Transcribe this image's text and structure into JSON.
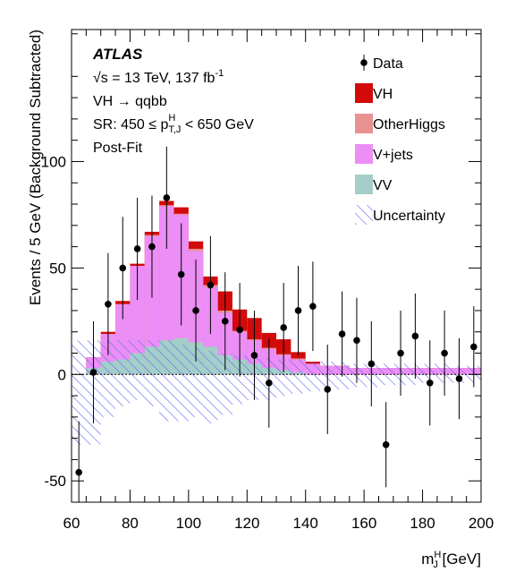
{
  "chart_data": {
    "type": "histogram",
    "experiment": "ATLAS",
    "energy_lumi": "√s = 13 TeV, 137 fb",
    "lumi_exp": "-1",
    "process": "VH → qqbb",
    "region_prefix": "SR: 450 ≤ p",
    "region_sup": "H",
    "region_sub": "T,J",
    "region_suffix": " < 650 GeV",
    "fit_label": "Post-Fit",
    "xlabel_main": "m",
    "xlabel_sup": "H",
    "xlabel_sub": "J",
    "xlabel_unit": " [GeV]",
    "ylabel": "Events / 5 GeV (Background Subtracted)",
    "xlim": [
      60,
      200
    ],
    "ylim": [
      -60,
      162
    ],
    "xticks": [
      60,
      80,
      100,
      120,
      140,
      160,
      180,
      200
    ],
    "yticks": [
      -50,
      0,
      50,
      100
    ],
    "bin_edges": [
      60,
      65,
      70,
      75,
      80,
      85,
      90,
      95,
      100,
      105,
      110,
      115,
      120,
      125,
      130,
      135,
      140,
      145,
      150,
      155,
      160,
      165,
      170,
      175,
      180,
      185,
      190,
      195,
      200
    ],
    "stack": [
      {
        "name": "VV",
        "color": "#a3cfc8",
        "values": [
          0,
          3,
          6,
          7,
          10,
          13,
          16,
          17,
          15,
          13,
          9,
          7,
          5,
          3,
          2,
          1,
          0,
          0,
          0,
          0,
          0,
          0,
          0,
          0,
          0,
          0,
          0,
          0
        ]
      },
      {
        "name": "V+jets",
        "color": "#ec8ef5",
        "values": [
          0,
          5,
          13,
          26,
          41,
          52,
          63,
          58,
          43,
          28,
          20,
          13,
          11,
          9,
          7,
          6,
          5,
          4,
          4,
          3,
          3,
          3,
          3,
          3,
          3,
          3,
          3,
          3
        ]
      },
      {
        "name": "OtherHiggs",
        "color": "#e89292",
        "values": [
          0,
          0,
          0,
          0,
          0,
          0.5,
          0.5,
          0.5,
          1,
          1,
          1,
          0.5,
          0.5,
          0.5,
          0.5,
          0.5,
          0,
          0,
          0,
          0,
          0,
          0,
          0,
          0,
          0,
          0,
          0,
          0
        ]
      },
      {
        "name": "VH",
        "color": "#d20a0a",
        "values": [
          0,
          0,
          1,
          1.5,
          1,
          1.5,
          2,
          3,
          3.5,
          4,
          9,
          10,
          10,
          7,
          7,
          3,
          1,
          0,
          0,
          0,
          0,
          0,
          0,
          0,
          0,
          0,
          0,
          0
        ]
      }
    ],
    "uncertainty": {
      "name": "Uncertainty",
      "color": "#6b6ff0",
      "up": [
        16,
        16,
        16,
        16,
        16,
        16,
        16,
        14,
        13,
        11,
        10,
        9,
        8,
        8,
        7,
        7,
        6,
        6,
        6,
        5,
        5,
        5,
        5,
        5,
        5,
        5,
        4,
        4
      ],
      "down": [
        -33,
        -33,
        -20,
        -15,
        -12,
        -15,
        -22,
        -22,
        -20,
        -23,
        -19,
        -14,
        -12,
        -12,
        -10,
        -9,
        -8,
        -7,
        -7,
        -6,
        -6,
        -5,
        -5,
        -5,
        -4,
        -4,
        -4,
        -4
      ]
    },
    "data": {
      "name": "Data",
      "x": [
        62.5,
        67.5,
        72.5,
        77.5,
        82.5,
        87.5,
        92.5,
        97.5,
        102.5,
        107.5,
        112.5,
        117.5,
        122.5,
        127.5,
        132.5,
        137.5,
        142.5,
        147.5,
        152.5,
        157.5,
        162.5,
        167.5,
        172.5,
        177.5,
        182.5,
        187.5,
        192.5,
        197.5
      ],
      "y": [
        -46,
        1,
        33,
        50,
        59,
        60,
        83,
        47,
        30,
        42,
        25,
        21,
        9,
        -4,
        22,
        30,
        32,
        -7,
        19,
        16,
        5,
        -33,
        10,
        18,
        -4,
        10,
        -2,
        13
      ],
      "yerr": [
        24,
        24,
        24,
        24,
        24,
        24,
        24,
        24,
        24,
        23,
        23,
        22,
        21,
        21,
        21,
        21,
        21,
        21,
        20,
        20,
        20,
        20,
        20,
        20,
        20,
        20,
        19,
        19
      ]
    },
    "legend": {
      "placement": "top-right",
      "entries": [
        "Data",
        "VH",
        "OtherHiggs",
        "V+jets",
        "VV",
        "Uncertainty"
      ]
    }
  }
}
